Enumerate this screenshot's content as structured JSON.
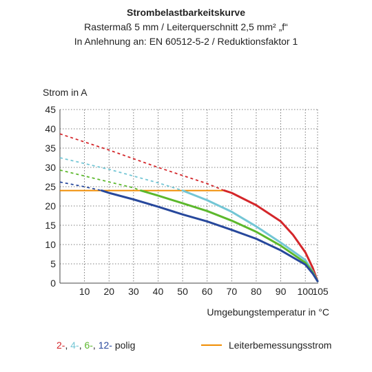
{
  "chart_data": {
    "type": "line",
    "title": "Strombelastbarkeitskurve",
    "subtitle_1": "Rastermaß 5 mm / Leiterquerschnitt 2,5 mm² „f“",
    "subtitle_2": "In Anlehnung an: EN 60512-5-2 / Reduktionsfaktor 1",
    "ylabel": "Strom in A",
    "xlabel": "Umgebungstemperatur in °C",
    "xlim": [
      0,
      105
    ],
    "ylim": [
      0,
      45
    ],
    "xticks": [
      10,
      20,
      30,
      40,
      50,
      60,
      70,
      80,
      90,
      100,
      105
    ],
    "yticks": [
      0,
      5,
      10,
      15,
      20,
      25,
      30,
      35,
      40,
      45
    ],
    "grid": true,
    "series": [
      {
        "name": "2-",
        "color": "#d4262a",
        "dashed": [
          [
            0,
            38.7
          ],
          [
            20,
            34.5
          ],
          [
            40,
            30.0
          ],
          [
            60,
            25.8
          ],
          [
            67,
            24.0
          ]
        ],
        "solid": [
          [
            67,
            24.0
          ],
          [
            70,
            23.4
          ],
          [
            80,
            20.2
          ],
          [
            90,
            16.0
          ],
          [
            95,
            12.5
          ],
          [
            100,
            8.0
          ],
          [
            103,
            4.0
          ],
          [
            105,
            0.5
          ]
        ]
      },
      {
        "name": "4-",
        "color": "#73c6d5",
        "dashed": [
          [
            0,
            32.5
          ],
          [
            20,
            29.5
          ],
          [
            40,
            26.0
          ],
          [
            50,
            24.0
          ]
        ],
        "solid": [
          [
            50,
            24.0
          ],
          [
            60,
            21.5
          ],
          [
            70,
            18.5
          ],
          [
            80,
            14.7
          ],
          [
            90,
            10.5
          ],
          [
            100,
            6.0
          ],
          [
            103,
            3.0
          ],
          [
            105,
            0.5
          ]
        ]
      },
      {
        "name": "6-",
        "color": "#5cb82c",
        "dashed": [
          [
            0,
            29.3
          ],
          [
            15,
            27.0
          ],
          [
            30,
            24.7
          ],
          [
            33,
            24.0
          ]
        ],
        "solid": [
          [
            33,
            24.0
          ],
          [
            40,
            22.7
          ],
          [
            50,
            20.7
          ],
          [
            60,
            18.7
          ],
          [
            70,
            16.2
          ],
          [
            80,
            13.3
          ],
          [
            90,
            9.7
          ],
          [
            100,
            5.3
          ],
          [
            103,
            2.8
          ],
          [
            105,
            0.5
          ]
        ]
      },
      {
        "name": "12-",
        "color": "#27489c",
        "dashed": [
          [
            0,
            26.2
          ],
          [
            10,
            25.0
          ],
          [
            17,
            24.0
          ]
        ],
        "solid": [
          [
            17,
            24.0
          ],
          [
            20,
            23.4
          ],
          [
            30,
            21.7
          ],
          [
            40,
            19.8
          ],
          [
            50,
            17.8
          ],
          [
            60,
            16.0
          ],
          [
            70,
            13.8
          ],
          [
            80,
            11.5
          ],
          [
            90,
            8.5
          ],
          [
            100,
            4.8
          ],
          [
            103,
            2.5
          ],
          [
            105,
            0.5
          ]
        ]
      }
    ],
    "reference_line": {
      "name": "Leiterbemessungsstrom",
      "color": "#f08c00",
      "y": 24,
      "x": [
        0,
        67
      ]
    },
    "legend": {
      "position": "bottom",
      "polig_suffix": "polig",
      "series_labels": [
        "2-",
        "4-",
        "6-",
        "12-"
      ],
      "separator": ", "
    }
  }
}
